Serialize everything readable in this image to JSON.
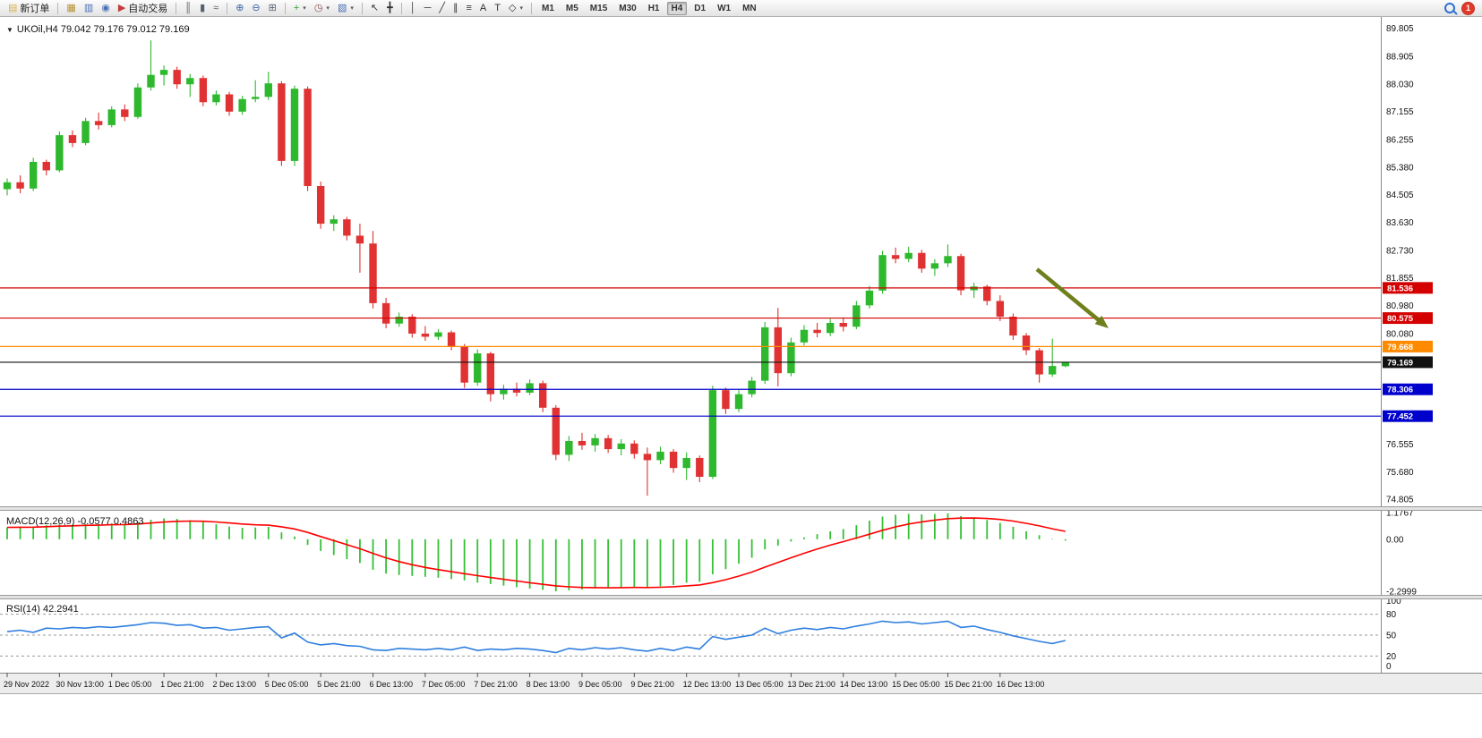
{
  "toolbar": {
    "items": [
      {
        "name": "new-order-button",
        "glyph": "▤",
        "glyph_color": "#d8b24a",
        "label": "新订单"
      },
      {
        "sep": true
      },
      {
        "name": "new-chart-button",
        "glyph": "▦",
        "glyph_color": "#b8912f"
      },
      {
        "name": "profiles-button",
        "glyph": "▥",
        "glyph_color": "#4a6fb5"
      },
      {
        "name": "refresh-button",
        "glyph": "◉",
        "glyph_color": "#4a6fb5"
      },
      {
        "name": "auto-trading-button",
        "glyph": "▶",
        "glyph_color": "#c43b3b",
        "label": "自动交易"
      },
      {
        "sep": true
      },
      {
        "name": "bar-chart-button",
        "glyph": "║",
        "glyph_color": "#55606e"
      },
      {
        "name": "candlestick-chart-button",
        "glyph": "▮",
        "glyph_color": "#55606e"
      },
      {
        "name": "line-chart-button",
        "glyph": "≈",
        "glyph_color": "#55606e"
      },
      {
        "sep": true
      },
      {
        "name": "zoom-in-button",
        "glyph": "⊕",
        "glyph_color": "#3a62a8"
      },
      {
        "name": "zoom-out-button",
        "glyph": "⊖",
        "glyph_color": "#3a62a8"
      },
      {
        "name": "tile-windows-button",
        "glyph": "⊞",
        "glyph_color": "#55606e"
      },
      {
        "sep": true
      },
      {
        "name": "indicators-button",
        "glyph": "+",
        "glyph_color": "#2f9e2f",
        "caret": true
      },
      {
        "name": "periods-button",
        "glyph": "◷",
        "glyph_color": "#8a4a4a",
        "caret": true
      },
      {
        "name": "templates-button",
        "glyph": "▧",
        "glyph_color": "#4a6fb5",
        "caret": true
      },
      {
        "sep": true
      },
      {
        "name": "cursor-button",
        "glyph": "↖",
        "glyph_color": "#333333"
      },
      {
        "name": "crosshair-button",
        "glyph": "╋",
        "glyph_color": "#333333"
      },
      {
        "sep": true
      },
      {
        "name": "vertical-line-button",
        "glyph": "│",
        "glyph_color": "#333333"
      },
      {
        "name": "horizontal-line-button",
        "glyph": "─",
        "glyph_color": "#333333"
      },
      {
        "name": "trendline-button",
        "glyph": "╱",
        "glyph_color": "#333333"
      },
      {
        "name": "channel-button",
        "glyph": "∥",
        "glyph_color": "#333333"
      },
      {
        "name": "fibonacci-button",
        "glyph": "≡",
        "glyph_color": "#333333"
      },
      {
        "name": "text-button",
        "glyph": "A",
        "glyph_color": "#333333"
      },
      {
        "name": "label-button",
        "glyph": "T",
        "glyph_color": "#333333"
      },
      {
        "name": "shapes-button",
        "glyph": "◇",
        "glyph_color": "#333333",
        "caret": true
      },
      {
        "sep": true
      }
    ],
    "timeframes": [
      "M1",
      "M5",
      "M15",
      "M30",
      "H1",
      "H4",
      "D1",
      "W1",
      "MN"
    ],
    "active_timeframe": "H4",
    "notification_count": "1"
  },
  "chart": {
    "collapse_glyph": "▼",
    "symbol_label": "UKOil,H4  79.042 79.176 79.012 79.169",
    "macd_label": "MACD(12,26,9) -0.0577 0.4863",
    "rsi_label": "RSI(14) 42.2941"
  },
  "chart_data": {
    "type": "candlestick",
    "symbol": "UKOil",
    "timeframe": "H4",
    "price_axis_ticks": [
      "89.805",
      "88.905",
      "88.030",
      "87.155",
      "86.255",
      "85.380",
      "84.505",
      "83.630",
      "82.730",
      "81.855",
      "80.980",
      "80.080",
      "79.205",
      "78.330",
      "77.455",
      "76.555",
      "75.680",
      "74.805"
    ],
    "hlines": [
      {
        "price": 81.536,
        "label": "81.536",
        "color": "#d40000"
      },
      {
        "price": 80.575,
        "label": "80.575",
        "color": "#d40000"
      },
      {
        "price": 79.668,
        "label": "79.668",
        "color": "#ff8a00"
      },
      {
        "price": 79.169,
        "label": "79.169",
        "color": "#111111"
      },
      {
        "price": 78.306,
        "label": "78.306",
        "color": "#0000cc"
      },
      {
        "price": 77.452,
        "label": "77.452",
        "color": "#0000cc"
      }
    ],
    "up_color": "#2eb82e",
    "down_color": "#e03232",
    "candles": [
      [
        84.68,
        85.02,
        84.48,
        84.9
      ],
      [
        84.9,
        85.12,
        84.55,
        84.7
      ],
      [
        84.7,
        85.68,
        84.62,
        85.55
      ],
      [
        85.55,
        85.62,
        85.12,
        85.28
      ],
      [
        85.28,
        86.52,
        85.22,
        86.4
      ],
      [
        86.4,
        86.55,
        86.02,
        86.15
      ],
      [
        86.15,
        86.95,
        86.08,
        86.85
      ],
      [
        86.85,
        87.12,
        86.58,
        86.72
      ],
      [
        86.72,
        87.32,
        86.65,
        87.22
      ],
      [
        87.22,
        87.38,
        86.85,
        86.98
      ],
      [
        86.98,
        88.05,
        86.92,
        87.92
      ],
      [
        87.92,
        89.42,
        87.82,
        88.32
      ],
      [
        88.32,
        88.62,
        87.98,
        88.48
      ],
      [
        88.48,
        88.58,
        87.88,
        88.02
      ],
      [
        88.02,
        88.35,
        87.62,
        88.22
      ],
      [
        88.22,
        88.3,
        87.32,
        87.45
      ],
      [
        87.45,
        87.82,
        87.35,
        87.7
      ],
      [
        87.7,
        87.78,
        87.02,
        87.15
      ],
      [
        87.15,
        87.65,
        87.05,
        87.55
      ],
      [
        87.55,
        88.15,
        87.45,
        87.62
      ],
      [
        87.62,
        88.42,
        87.52,
        88.05
      ],
      [
        88.05,
        88.12,
        85.42,
        85.58
      ],
      [
        85.58,
        87.98,
        85.42,
        87.88
      ],
      [
        87.88,
        87.95,
        84.62,
        84.78
      ],
      [
        84.78,
        84.92,
        83.42,
        83.58
      ],
      [
        83.58,
        83.85,
        83.35,
        83.72
      ],
      [
        83.72,
        83.8,
        83.05,
        83.2
      ],
      [
        83.2,
        83.58,
        82.02,
        82.95
      ],
      [
        82.95,
        83.35,
        80.88,
        81.05
      ],
      [
        81.05,
        81.22,
        80.25,
        80.4
      ],
      [
        80.4,
        80.75,
        80.3,
        80.62
      ],
      [
        80.62,
        80.7,
        79.95,
        80.08
      ],
      [
        80.08,
        80.32,
        79.85,
        79.98
      ],
      [
        79.98,
        80.22,
        79.88,
        80.12
      ],
      [
        80.12,
        80.18,
        79.55,
        79.68
      ],
      [
        79.68,
        79.75,
        78.35,
        78.52
      ],
      [
        78.52,
        79.58,
        78.42,
        79.45
      ],
      [
        79.45,
        79.5,
        77.92,
        78.15
      ],
      [
        78.15,
        78.45,
        77.98,
        78.32
      ],
      [
        78.32,
        78.52,
        78.08,
        78.2
      ],
      [
        78.2,
        78.62,
        78.12,
        78.5
      ],
      [
        78.5,
        78.58,
        77.58,
        77.72
      ],
      [
        77.72,
        77.8,
        76.05,
        76.22
      ],
      [
        76.22,
        76.82,
        76.02,
        76.66
      ],
      [
        76.66,
        76.92,
        76.38,
        76.52
      ],
      [
        76.52,
        76.88,
        76.32,
        76.75
      ],
      [
        76.75,
        76.85,
        76.28,
        76.4
      ],
      [
        76.4,
        76.72,
        76.2,
        76.58
      ],
      [
        76.58,
        76.68,
        76.1,
        76.25
      ],
      [
        76.25,
        76.45,
        74.92,
        76.05
      ],
      [
        76.05,
        76.48,
        75.92,
        76.32
      ],
      [
        76.32,
        76.4,
        75.65,
        75.8
      ],
      [
        75.8,
        76.3,
        75.42,
        76.12
      ],
      [
        76.12,
        76.2,
        75.35,
        75.52
      ],
      [
        75.52,
        78.42,
        75.45,
        78.28
      ],
      [
        78.28,
        78.36,
        77.52,
        77.68
      ],
      [
        77.68,
        78.28,
        77.58,
        78.15
      ],
      [
        78.15,
        78.7,
        78.05,
        78.58
      ],
      [
        78.58,
        80.45,
        78.48,
        80.28
      ],
      [
        80.28,
        80.9,
        78.4,
        78.82
      ],
      [
        78.82,
        79.95,
        78.72,
        79.8
      ],
      [
        79.8,
        80.35,
        79.7,
        80.2
      ],
      [
        80.2,
        80.42,
        79.96,
        80.1
      ],
      [
        80.1,
        80.55,
        80.0,
        80.42
      ],
      [
        80.42,
        80.6,
        80.15,
        80.3
      ],
      [
        80.3,
        81.12,
        80.22,
        80.98
      ],
      [
        80.98,
        81.6,
        80.88,
        81.45
      ],
      [
        81.45,
        82.72,
        81.35,
        82.58
      ],
      [
        82.58,
        82.82,
        82.32,
        82.46
      ],
      [
        82.46,
        82.85,
        82.36,
        82.65
      ],
      [
        82.65,
        82.75,
        82.02,
        82.15
      ],
      [
        82.15,
        82.45,
        81.92,
        82.32
      ],
      [
        82.32,
        82.92,
        82.2,
        82.55
      ],
      [
        82.55,
        82.62,
        81.3,
        81.46
      ],
      [
        81.46,
        81.7,
        81.22,
        81.58
      ],
      [
        81.58,
        81.64,
        80.98,
        81.12
      ],
      [
        81.12,
        81.3,
        80.48,
        80.62
      ],
      [
        80.62,
        80.72,
        79.88,
        80.02
      ],
      [
        80.02,
        80.1,
        79.4,
        79.55
      ],
      [
        79.55,
        79.62,
        78.52,
        78.78
      ],
      [
        78.78,
        79.92,
        78.7,
        79.05
      ],
      [
        79.042,
        79.176,
        79.012,
        79.169
      ]
    ],
    "time_labels": [
      "29 Nov 2022",
      "30 Nov 13:00",
      "1 Dec 05:00",
      "1 Dec 21:00",
      "2 Dec 13:00",
      "5 Dec 05:00",
      "5 Dec 21:00",
      "6 Dec 13:00",
      "7 Dec 05:00",
      "7 Dec 21:00",
      "8 Dec 13:00",
      "9 Dec 05:00",
      "9 Dec 21:00",
      "12 Dec 13:00",
      "13 Dec 05:00",
      "13 Dec 21:00",
      "14 Dec 13:00",
      "15 Dec 05:00",
      "15 Dec 21:00",
      "16 Dec 13:00"
    ],
    "label_every_n_bars": 4,
    "macd": {
      "name": "MACD(12,26,9)",
      "current_macd": -0.0577,
      "current_signal": 0.4863,
      "histogram_color": "#35c035",
      "signal_color": "#ff0000",
      "ticks": [
        {
          "label": "1.1767",
          "value": 1.1767
        },
        {
          "label": "0.00",
          "value": 0
        },
        {
          "label": "-2.2999",
          "value": -2.2999
        }
      ],
      "range": [
        -2.2999,
        1.1767
      ],
      "values": [
        0.52,
        0.56,
        0.55,
        0.62,
        0.66,
        0.64,
        0.68,
        0.66,
        0.7,
        0.68,
        0.76,
        0.86,
        0.92,
        0.9,
        0.84,
        0.76,
        0.66,
        0.56,
        0.5,
        0.52,
        0.55,
        0.3,
        0.12,
        -0.25,
        -0.52,
        -0.7,
        -0.88,
        -1.05,
        -1.35,
        -1.52,
        -1.58,
        -1.62,
        -1.66,
        -1.7,
        -1.76,
        -1.82,
        -1.92,
        -1.98,
        -2.05,
        -2.12,
        -2.18,
        -2.24,
        -2.3,
        -2.26,
        -2.22,
        -2.18,
        -2.16,
        -2.12,
        -2.1,
        -2.14,
        -2.08,
        -2.02,
        -1.92,
        -1.88,
        -1.55,
        -1.32,
        -1.08,
        -0.82,
        -0.45,
        -0.28,
        -0.1,
        0.08,
        0.22,
        0.35,
        0.45,
        0.62,
        0.82,
        1.0,
        1.08,
        1.12,
        1.1,
        1.12,
        1.14,
        1.02,
        0.95,
        0.85,
        0.72,
        0.55,
        0.35,
        0.18,
        0.02,
        -0.06
      ]
    },
    "rsi": {
      "name": "RSI(14)",
      "current": 42.2941,
      "line_color": "#2f7fdf",
      "ticks": [
        {
          "label": "100",
          "value": 100
        },
        {
          "label": "80",
          "value": 80
        },
        {
          "label": "50",
          "value": 50
        },
        {
          "label": "20",
          "value": 20
        },
        {
          "label": "0",
          "value": 0
        }
      ],
      "levels": [
        80,
        50,
        20
      ],
      "range": [
        0,
        100
      ],
      "values": [
        55,
        57,
        54,
        60,
        59,
        61,
        60,
        62,
        61,
        63,
        65,
        68,
        67,
        64,
        65,
        60,
        61,
        57,
        59,
        61,
        62,
        46,
        53,
        40,
        36,
        38,
        35,
        34,
        29,
        28,
        31,
        30,
        29,
        31,
        29,
        33,
        28,
        30,
        29,
        31,
        30,
        28,
        25,
        31,
        29,
        32,
        30,
        32,
        29,
        27,
        31,
        28,
        33,
        30,
        48,
        44,
        47,
        50,
        60,
        52,
        57,
        60,
        58,
        61,
        59,
        63,
        66,
        70,
        68,
        69,
        66,
        68,
        70,
        61,
        63,
        58,
        54,
        49,
        45,
        41,
        38,
        42.29
      ]
    },
    "arrow_annotation": {
      "from": [
        1158,
        282
      ],
      "to": [
        1238,
        348
      ],
      "color": "#6e7f1c"
    }
  }
}
